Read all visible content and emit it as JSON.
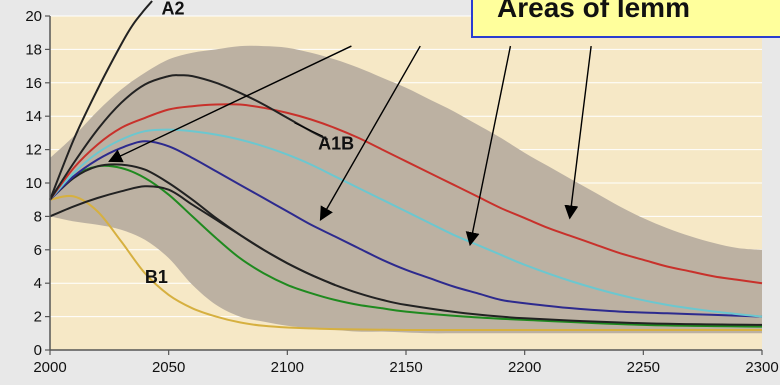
{
  "chart_data": {
    "type": "line",
    "title": "",
    "xlabel": "",
    "ylabel": "",
    "xlim": [
      2000,
      2300
    ],
    "ylim": [
      0,
      20
    ],
    "x_ticks": [
      "2000",
      "2050",
      "2100",
      "2150",
      "2200",
      "2250",
      "2300"
    ],
    "y_ticks": [
      "0",
      "2",
      "4",
      "6",
      "8",
      "10",
      "12",
      "14",
      "16",
      "18",
      "20"
    ],
    "grid": "horizontal",
    "background_color": "#f6e8c6",
    "band_color": "#bcb1a2",
    "uncertainty_band": {
      "x": [
        2000,
        2010,
        2020,
        2030,
        2040,
        2050,
        2060,
        2070,
        2080,
        2090,
        2100,
        2110,
        2120,
        2130,
        2140,
        2150,
        2160,
        2170,
        2180,
        2190,
        2200,
        2210,
        2220,
        2230,
        2240,
        2250,
        2260,
        2270,
        2280,
        2290,
        2300
      ],
      "upper": [
        11.5,
        12.8,
        14.3,
        15.6,
        16.6,
        17.4,
        17.8,
        18.0,
        18.2,
        18.2,
        18.1,
        17.8,
        17.4,
        16.9,
        16.3,
        15.7,
        15.0,
        14.3,
        13.5,
        12.7,
        11.8,
        11.0,
        10.2,
        9.4,
        8.6,
        7.9,
        7.3,
        6.8,
        6.4,
        6.1,
        6.0
      ],
      "lower": [
        8.0,
        7.7,
        7.5,
        7.2,
        6.6,
        5.5,
        3.9,
        2.7,
        2.0,
        1.7,
        1.45,
        1.3,
        1.2,
        1.1,
        1.1,
        1.05,
        1.0,
        1.0,
        1.0,
        1.0,
        1.0,
        1.0,
        1.0,
        1.0,
        1.0,
        1.0,
        1.0,
        1.0,
        1.0,
        1.0,
        1.0
      ]
    },
    "series": [
      {
        "color": "#d6b040",
        "x": [
          2000,
          2010,
          2020,
          2030,
          2040,
          2050,
          2060,
          2070,
          2080,
          2090,
          2100,
          2120,
          2150,
          2200,
          2250,
          2300
        ],
        "values": [
          9.0,
          9.2,
          8.3,
          6.5,
          4.6,
          3.3,
          2.5,
          2.0,
          1.65,
          1.45,
          1.35,
          1.25,
          1.2,
          1.2,
          1.2,
          1.2
        ]
      },
      {
        "color": "#1f8a1f",
        "x": [
          2000,
          2010,
          2020,
          2030,
          2040,
          2050,
          2060,
          2070,
          2080,
          2090,
          2100,
          2110,
          2120,
          2130,
          2140,
          2150,
          2175,
          2200,
          2250,
          2300
        ],
        "values": [
          9.0,
          10.4,
          11.0,
          10.9,
          10.3,
          9.3,
          8.0,
          6.7,
          5.5,
          4.6,
          3.9,
          3.4,
          3.0,
          2.7,
          2.5,
          2.3,
          2.0,
          1.8,
          1.5,
          1.4
        ]
      },
      {
        "color": "#222222",
        "x": [
          2000,
          2010,
          2020,
          2030,
          2040,
          2050,
          2060,
          2070,
          2080,
          2090,
          2100,
          2110,
          2120,
          2130,
          2140,
          2150,
          2175,
          2200,
          2250,
          2300
        ],
        "values": [
          8.0,
          8.6,
          9.1,
          9.5,
          9.8,
          9.6,
          8.7,
          7.8,
          6.9,
          6.0,
          5.2,
          4.5,
          3.9,
          3.4,
          3.0,
          2.7,
          2.2,
          1.9,
          1.6,
          1.5
        ]
      },
      {
        "color": "#222222",
        "x": [
          2000,
          2010,
          2020,
          2030,
          2040,
          2050,
          2060,
          2070,
          2080,
          2090,
          2100,
          2110,
          2120
        ],
        "values": [
          9.0,
          10.3,
          11.0,
          11.1,
          10.8,
          10.0,
          9.0,
          7.9,
          6.9,
          6.0,
          5.2,
          4.5,
          3.9
        ]
      },
      {
        "color": "#2d2a8e",
        "x": [
          2000,
          2010,
          2020,
          2030,
          2040,
          2050,
          2060,
          2070,
          2080,
          2090,
          2100,
          2110,
          2120,
          2130,
          2140,
          2150,
          2160,
          2170,
          2180,
          2190,
          2200,
          2220,
          2240,
          2260,
          2280,
          2300
        ],
        "values": [
          9.0,
          10.4,
          11.4,
          12.1,
          12.5,
          12.2,
          11.5,
          10.7,
          9.9,
          9.1,
          8.3,
          7.5,
          6.8,
          6.1,
          5.4,
          4.8,
          4.3,
          3.8,
          3.4,
          3.0,
          2.8,
          2.5,
          2.3,
          2.2,
          2.1,
          2.0
        ]
      },
      {
        "color": "#6cc7cf",
        "x": [
          2000,
          2010,
          2020,
          2030,
          2040,
          2050,
          2060,
          2070,
          2080,
          2090,
          2100,
          2110,
          2120,
          2130,
          2140,
          2150,
          2160,
          2170,
          2180,
          2190,
          2200,
          2220,
          2240,
          2260,
          2280,
          2300
        ],
        "values": [
          9.0,
          10.6,
          11.8,
          12.6,
          13.1,
          13.2,
          13.1,
          12.9,
          12.6,
          12.2,
          11.7,
          11.1,
          10.4,
          9.7,
          9.0,
          8.3,
          7.6,
          6.9,
          6.3,
          5.7,
          5.1,
          4.1,
          3.3,
          2.7,
          2.3,
          2.0
        ]
      },
      {
        "color": "#c8312b",
        "x": [
          2000,
          2010,
          2020,
          2030,
          2040,
          2050,
          2060,
          2070,
          2080,
          2090,
          2100,
          2110,
          2120,
          2130,
          2140,
          2150,
          2160,
          2170,
          2180,
          2190,
          2200,
          2210,
          2220,
          2230,
          2240,
          2250,
          2260,
          2270,
          2280,
          2290,
          2300
        ],
        "values": [
          9.0,
          10.9,
          12.3,
          13.3,
          13.9,
          14.4,
          14.6,
          14.7,
          14.7,
          14.5,
          14.2,
          13.8,
          13.3,
          12.7,
          12.0,
          11.3,
          10.6,
          9.9,
          9.2,
          8.5,
          7.9,
          7.3,
          6.8,
          6.3,
          5.8,
          5.4,
          5.0,
          4.7,
          4.4,
          4.2,
          4.0
        ]
      },
      {
        "color": "#222222",
        "x": [
          2000,
          2010,
          2020,
          2030,
          2040,
          2050,
          2055,
          2060,
          2070,
          2080,
          2090,
          2100,
          2110,
          2117
        ],
        "values": [
          9.0,
          11.2,
          13.2,
          14.8,
          15.9,
          16.4,
          16.45,
          16.4,
          16.0,
          15.4,
          14.7,
          13.9,
          13.1,
          12.6
        ]
      },
      {
        "color": "#222222",
        "x": [
          2000,
          2010,
          2020,
          2030,
          2035,
          2040,
          2043
        ],
        "values": [
          9.0,
          12.6,
          15.6,
          18.3,
          19.5,
          20.4,
          20.9
        ]
      }
    ],
    "annotations": {
      "A2": {
        "text": "A2",
        "x": 2047,
        "y": 20.1
      },
      "A1B": {
        "text": "A1B",
        "x": 2113,
        "y": 12.0
      },
      "B1": {
        "text": "B1",
        "x": 2040,
        "y": 4.0
      }
    },
    "callout_text": "Areas of lemm",
    "callout_color": "#2a3fd0",
    "callout_fill": "#ffff9c",
    "callout_arrows": [
      {
        "from": [
          2127,
          18.2
        ],
        "to": [
          2025,
          11.3
        ]
      },
      {
        "from": [
          2156,
          18.2
        ],
        "to": [
          2114,
          7.8
        ]
      },
      {
        "from": [
          2194,
          18.2
        ],
        "to": [
          2177,
          6.3
        ]
      },
      {
        "from": [
          2228,
          18.2
        ],
        "to": [
          2219,
          7.9
        ]
      }
    ]
  }
}
